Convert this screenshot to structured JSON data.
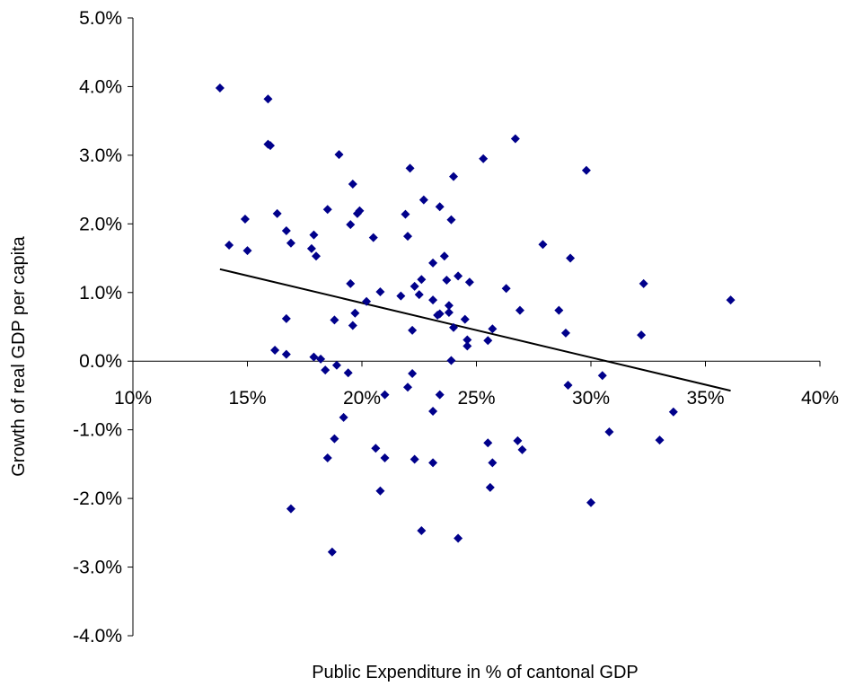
{
  "chart_data": {
    "type": "scatter",
    "title": "",
    "xlabel": "Public Expenditure in % of cantonal GDP",
    "ylabel": "Growth of real GDP per capita",
    "xlim": [
      0.1,
      0.4
    ],
    "ylim": [
      -0.04,
      0.05
    ],
    "x_ticks": [
      0.1,
      0.15,
      0.2,
      0.25,
      0.3,
      0.35,
      0.4
    ],
    "x_tick_labels": [
      "10%",
      "15%",
      "20%",
      "25%",
      "30%",
      "35%",
      "40%"
    ],
    "y_ticks": [
      0.05,
      0.04,
      0.03,
      0.02,
      0.01,
      0.0,
      -0.01,
      -0.02,
      -0.03,
      -0.04
    ],
    "y_tick_labels": [
      "5.0%",
      "4.0%",
      "3.0%",
      "2.0%",
      "1.0%",
      "0.0%",
      "-1.0%",
      "-2.0%",
      "-3.0%",
      "-4.0%"
    ],
    "grid": false,
    "legend": "none",
    "marker_color": "#00008B",
    "marker_shape": "diamond",
    "trendline": {
      "x": [
        0.138,
        0.361
      ],
      "y": [
        0.0134,
        -0.0043
      ],
      "color": "#000000"
    },
    "points": [
      [
        0.138,
        0.0398
      ],
      [
        0.159,
        0.0382
      ],
      [
        0.159,
        0.0316
      ],
      [
        0.16,
        0.0314
      ],
      [
        0.142,
        0.0169
      ],
      [
        0.15,
        0.0161
      ],
      [
        0.149,
        0.0207
      ],
      [
        0.163,
        0.0215
      ],
      [
        0.167,
        0.019
      ],
      [
        0.169,
        0.0172
      ],
      [
        0.162,
        0.0016
      ],
      [
        0.167,
        0.0062
      ],
      [
        0.167,
        0.001
      ],
      [
        0.178,
        0.0164
      ],
      [
        0.179,
        0.0184
      ],
      [
        0.18,
        0.0153
      ],
      [
        0.179,
        0.0006
      ],
      [
        0.182,
        0.0003
      ],
      [
        0.184,
        -0.0013
      ],
      [
        0.185,
        0.0221
      ],
      [
        0.19,
        0.0301
      ],
      [
        0.188,
        0.006
      ],
      [
        0.189,
        -0.0006
      ],
      [
        0.194,
        -0.0017
      ],
      [
        0.192,
        -0.0082
      ],
      [
        0.188,
        -0.0113
      ],
      [
        0.185,
        -0.0141
      ],
      [
        0.187,
        -0.0278
      ],
      [
        0.169,
        -0.0215
      ],
      [
        0.196,
        0.0258
      ],
      [
        0.198,
        0.0215
      ],
      [
        0.199,
        0.0219
      ],
      [
        0.195,
        0.0199
      ],
      [
        0.195,
        0.0113
      ],
      [
        0.197,
        0.007
      ],
      [
        0.196,
        0.0052
      ],
      [
        0.202,
        0.0087
      ],
      [
        0.205,
        0.018
      ],
      [
        0.208,
        0.0101
      ],
      [
        0.21,
        -0.0049
      ],
      [
        0.206,
        -0.0127
      ],
      [
        0.21,
        -0.0141
      ],
      [
        0.208,
        -0.0189
      ],
      [
        0.219,
        0.0214
      ],
      [
        0.22,
        0.0182
      ],
      [
        0.221,
        0.0281
      ],
      [
        0.217,
        0.0095
      ],
      [
        0.222,
        0.0045
      ],
      [
        0.223,
        0.0109
      ],
      [
        0.225,
        0.0097
      ],
      [
        0.226,
        0.0119
      ],
      [
        0.227,
        0.0235
      ],
      [
        0.22,
        -0.0038
      ],
      [
        0.222,
        -0.0018
      ],
      [
        0.223,
        -0.0143
      ],
      [
        0.226,
        -0.0247
      ],
      [
        0.231,
        0.0143
      ],
      [
        0.231,
        0.0089
      ],
      [
        0.233,
        0.0067
      ],
      [
        0.234,
        0.0069
      ],
      [
        0.234,
        0.0225
      ],
      [
        0.236,
        0.0153
      ],
      [
        0.237,
        0.0118
      ],
      [
        0.238,
        0.0081
      ],
      [
        0.238,
        0.0071
      ],
      [
        0.239,
        0.0206
      ],
      [
        0.24,
        0.0049
      ],
      [
        0.24,
        0.0269
      ],
      [
        0.242,
        0.0124
      ],
      [
        0.239,
        0.0001
      ],
      [
        0.231,
        -0.0073
      ],
      [
        0.234,
        -0.0049
      ],
      [
        0.231,
        -0.0148
      ],
      [
        0.242,
        -0.0258
      ],
      [
        0.245,
        0.0061
      ],
      [
        0.246,
        0.0031
      ],
      [
        0.246,
        0.0022
      ],
      [
        0.247,
        0.0115
      ],
      [
        0.253,
        0.0295
      ],
      [
        0.255,
        0.003
      ],
      [
        0.257,
        0.0047
      ],
      [
        0.255,
        -0.0119
      ],
      [
        0.257,
        -0.0148
      ],
      [
        0.256,
        -0.0184
      ],
      [
        0.263,
        0.0106
      ],
      [
        0.267,
        0.0324
      ],
      [
        0.269,
        0.0074
      ],
      [
        0.268,
        -0.0116
      ],
      [
        0.27,
        -0.0129
      ],
      [
        0.279,
        0.017
      ],
      [
        0.286,
        0.0074
      ],
      [
        0.289,
        0.0041
      ],
      [
        0.291,
        0.015
      ],
      [
        0.29,
        -0.0035
      ],
      [
        0.298,
        0.0278
      ],
      [
        0.3,
        -0.0206
      ],
      [
        0.305,
        -0.0021
      ],
      [
        0.308,
        -0.0103
      ],
      [
        0.322,
        0.0038
      ],
      [
        0.323,
        0.0113
      ],
      [
        0.33,
        -0.0115
      ],
      [
        0.336,
        -0.0074
      ],
      [
        0.361,
        0.0089
      ]
    ]
  }
}
